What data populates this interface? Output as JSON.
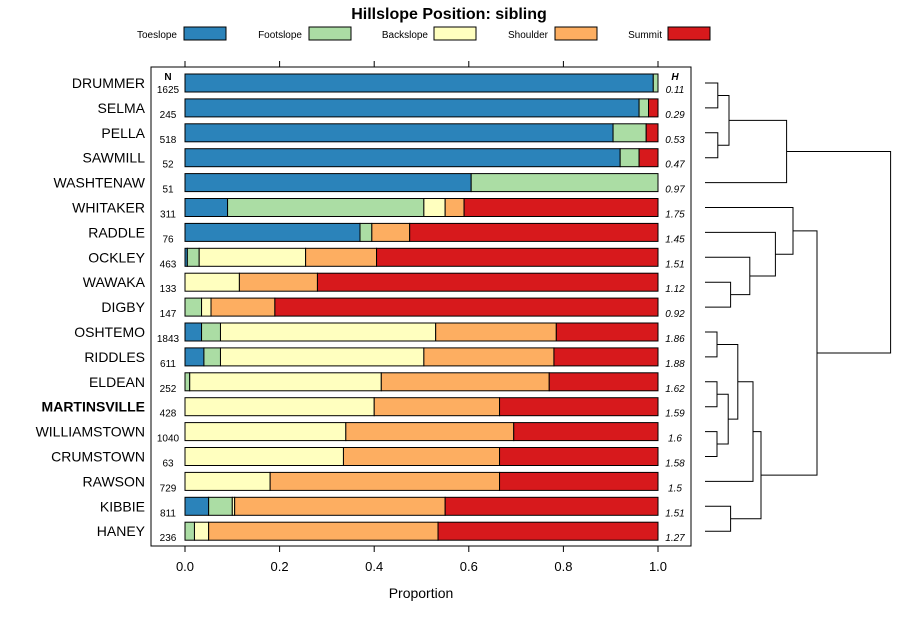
{
  "chart_data": {
    "type": "stacked-bar",
    "orientation": "horizontal",
    "title": "Hillslope Position: sibling",
    "xlabel": "Proportion",
    "xlim": [
      0,
      1
    ],
    "xticks": [
      0.0,
      0.2,
      0.4,
      0.6,
      0.8,
      1.0
    ],
    "xtick_labels": [
      "0.0",
      "0.2",
      "0.4",
      "0.6",
      "0.8",
      "1.0"
    ],
    "n_header": "N",
    "h_header": "H",
    "legend": [
      {
        "name": "Toeslope",
        "color": "#2b83ba"
      },
      {
        "name": "Footslope",
        "color": "#abdda4"
      },
      {
        "name": "Backslope",
        "color": "#ffffbf"
      },
      {
        "name": "Shoulder",
        "color": "#fdae61"
      },
      {
        "name": "Summit",
        "color": "#d7191c"
      }
    ],
    "rows": [
      {
        "name": "DRUMMER",
        "n": "1625",
        "h": "0.11",
        "bold": false,
        "values": [
          0.99,
          0.01,
          0.0,
          0.0,
          0.0
        ]
      },
      {
        "name": "SELMA",
        "n": "245",
        "h": "0.29",
        "bold": false,
        "values": [
          0.96,
          0.02,
          0.0,
          0.0,
          0.02
        ]
      },
      {
        "name": "PELLA",
        "n": "518",
        "h": "0.53",
        "bold": false,
        "values": [
          0.905,
          0.07,
          0.0,
          0.0,
          0.025
        ]
      },
      {
        "name": "SAWMILL",
        "n": "52",
        "h": "0.47",
        "bold": false,
        "values": [
          0.92,
          0.04,
          0.0,
          0.0,
          0.04
        ]
      },
      {
        "name": "WASHTENAW",
        "n": "51",
        "h": "0.97",
        "bold": false,
        "values": [
          0.605,
          0.395,
          0.0,
          0.0,
          0.0
        ]
      },
      {
        "name": "WHITAKER",
        "n": "311",
        "h": "1.75",
        "bold": false,
        "values": [
          0.09,
          0.415,
          0.045,
          0.04,
          0.41
        ]
      },
      {
        "name": "RADDLE",
        "n": "76",
        "h": "1.45",
        "bold": false,
        "values": [
          0.37,
          0.025,
          0.0,
          0.08,
          0.525
        ]
      },
      {
        "name": "OCKLEY",
        "n": "463",
        "h": "1.51",
        "bold": false,
        "values": [
          0.005,
          0.025,
          0.225,
          0.15,
          0.595
        ]
      },
      {
        "name": "WAWAKA",
        "n": "133",
        "h": "1.12",
        "bold": false,
        "values": [
          0.0,
          0.0,
          0.115,
          0.165,
          0.72
        ]
      },
      {
        "name": "DIGBY",
        "n": "147",
        "h": "0.92",
        "bold": false,
        "values": [
          0.0,
          0.035,
          0.02,
          0.135,
          0.81
        ]
      },
      {
        "name": "OSHTEMO",
        "n": "1843",
        "h": "1.86",
        "bold": false,
        "values": [
          0.035,
          0.04,
          0.455,
          0.255,
          0.215
        ]
      },
      {
        "name": "RIDDLES",
        "n": "611",
        "h": "1.88",
        "bold": false,
        "values": [
          0.04,
          0.035,
          0.43,
          0.275,
          0.22
        ]
      },
      {
        "name": "ELDEAN",
        "n": "252",
        "h": "1.62",
        "bold": false,
        "values": [
          0.0,
          0.01,
          0.405,
          0.355,
          0.23
        ]
      },
      {
        "name": "MARTINSVILLE",
        "n": "428",
        "h": "1.59",
        "bold": true,
        "values": [
          0.0,
          0.0,
          0.4,
          0.265,
          0.335
        ]
      },
      {
        "name": "WILLIAMSTOWN",
        "n": "1040",
        "h": "1.6",
        "bold": false,
        "values": [
          0.0,
          0.0,
          0.34,
          0.355,
          0.305
        ]
      },
      {
        "name": "CRUMSTOWN",
        "n": "63",
        "h": "1.58",
        "bold": false,
        "values": [
          0.0,
          0.0,
          0.335,
          0.33,
          0.335
        ]
      },
      {
        "name": "RAWSON",
        "n": "729",
        "h": "1.5",
        "bold": false,
        "values": [
          0.0,
          0.0,
          0.18,
          0.485,
          0.335
        ]
      },
      {
        "name": "KIBBIE",
        "n": "811",
        "h": "1.51",
        "bold": false,
        "values": [
          0.05,
          0.05,
          0.005,
          0.445,
          0.45
        ]
      },
      {
        "name": "HANEY",
        "n": "236",
        "h": "1.27",
        "bold": false,
        "values": [
          0.0,
          0.02,
          0.03,
          0.485,
          0.465
        ]
      }
    ],
    "dendrogram_note": "hierarchical clustering of rows shown at right"
  }
}
